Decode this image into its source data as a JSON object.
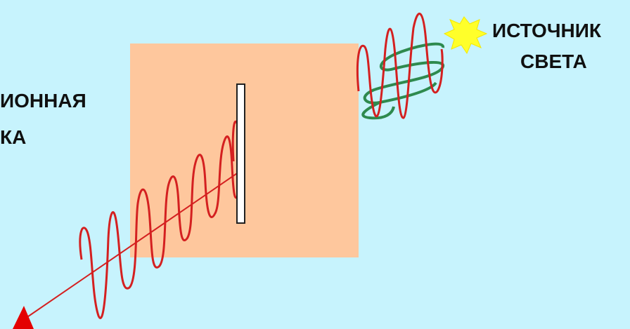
{
  "labels": {
    "source_line1": "ИСТОЧНИК",
    "source_line2": "СВЕТА",
    "plate_line1": "ИОННАЯ",
    "plate_line2": "КА"
  },
  "colors": {
    "background": "#c7f3fd",
    "plate": "#fec79d",
    "wave_red": "#d42020",
    "wave_green": "#2e8a4e",
    "sun": "#ffff2a",
    "arrow": "#e40000",
    "slit_fill": "#ffffff",
    "slit_stroke": "#202020"
  },
  "icons": {
    "light_source": "sun-icon",
    "arrow_head": "arrow-head-icon"
  }
}
